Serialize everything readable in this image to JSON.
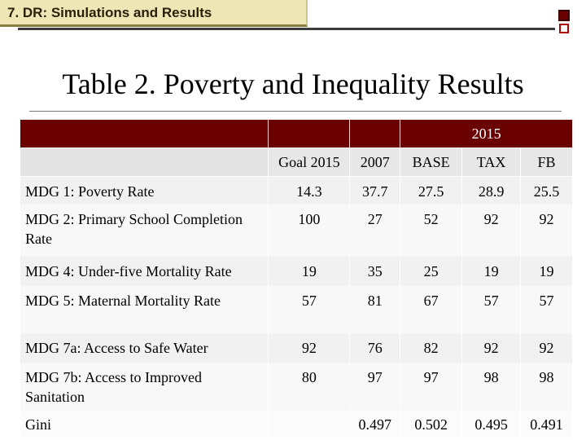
{
  "header": {
    "banner_title": "7. DR: Simulations and Results",
    "slide_title": "Table 2. Poverty and Inequality Results"
  },
  "table": {
    "group_label": "2015",
    "columns": [
      "Goal 2015",
      "2007",
      "BASE",
      "TAX",
      "FB"
    ],
    "rows": [
      {
        "label": "MDG 1: Poverty Rate",
        "values": [
          "14.3",
          "37.7",
          "27.5",
          "28.9",
          "25.5"
        ]
      },
      {
        "label": "MDG 2: Primary School Completion Rate",
        "values": [
          "100",
          "27",
          "52",
          "92",
          "92"
        ]
      },
      {
        "label": "MDG 4: Under-five Mortality Rate",
        "values": [
          "19",
          "35",
          "25",
          "19",
          "19"
        ]
      },
      {
        "label": "MDG 5: Maternal Mortality Rate",
        "values": [
          "57",
          "81",
          "67",
          "57",
          "57"
        ]
      },
      {
        "label": "MDG 7a: Access to Safe Water",
        "values": [
          "92",
          "76",
          "82",
          "92",
          "92"
        ]
      },
      {
        "label": "MDG 7b: Access to Improved Sanitation",
        "values": [
          "80",
          "97",
          "97",
          "98",
          "98"
        ]
      },
      {
        "label": "Gini",
        "values": [
          "",
          "0.497",
          "0.502",
          "0.495",
          "0.491"
        ]
      }
    ]
  },
  "colors": {
    "header_fill": "#6b0000",
    "banner_fill": "#efe6b6"
  }
}
